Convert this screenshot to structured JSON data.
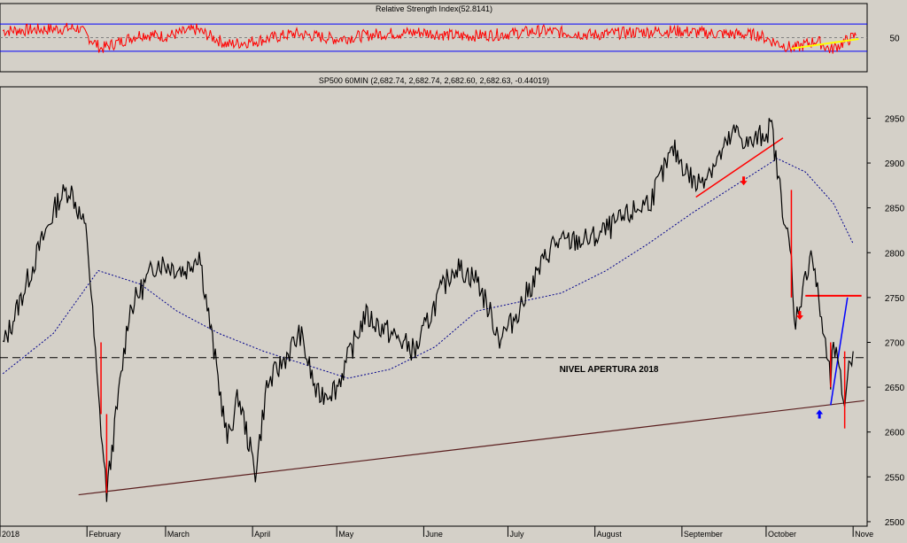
{
  "chart_data": [
    {
      "panel": "rsi",
      "type": "line",
      "title": "Relative Strength Index(52.8141)",
      "y_ticks": [
        "50"
      ],
      "ylim": [
        0,
        100
      ],
      "reference_lines": [
        30,
        70
      ],
      "midline": 50,
      "colors": {
        "line": "#ff0000",
        "bands": "#0000ff",
        "trendline": "#ffff00"
      },
      "series": [
        {
          "x": [
            "2018-01-02",
            "2018-01-16",
            "2018-01-29",
            "2018-02-06",
            "2018-02-20",
            "2018-03-01",
            "2018-03-12",
            "2018-03-23",
            "2018-04-02",
            "2018-04-16",
            "2018-05-01",
            "2018-05-15",
            "2018-05-31",
            "2018-06-14",
            "2018-06-29",
            "2018-07-13",
            "2018-07-31",
            "2018-08-15",
            "2018-08-29",
            "2018-09-13",
            "2018-09-28",
            "2018-10-05",
            "2018-10-11",
            "2018-10-19",
            "2018-10-24",
            "2018-10-29",
            "2018-11-02"
          ],
          "values": [
            60,
            62,
            64,
            34,
            55,
            52,
            62,
            40,
            45,
            56,
            48,
            55,
            58,
            52,
            55,
            60,
            54,
            58,
            60,
            56,
            54,
            42,
            34,
            46,
            32,
            44,
            53
          ]
        }
      ],
      "trendline": {
        "x": [
          "2018-10-10",
          "2018-11-03"
        ],
        "y": [
          34,
          48
        ]
      }
    },
    {
      "panel": "price",
      "type": "line",
      "title": "SP500 60MIN (2,682.74, 2,682.74, 2,682.60, 2,682.63, -0.44019)",
      "xlabel": "",
      "ylabel": "",
      "ylim": [
        2495,
        2985
      ],
      "xlim": [
        "2018-01-01",
        "2018-11-06"
      ],
      "y_ticks": [
        2500,
        2550,
        2600,
        2650,
        2700,
        2750,
        2800,
        2850,
        2900,
        2950
      ],
      "x_ticks": [
        {
          "x": "2018-01-01",
          "label": "2018"
        },
        {
          "x": "2018-02-01",
          "label": "February"
        },
        {
          "x": "2018-03-01",
          "label": "March"
        },
        {
          "x": "2018-04-01",
          "label": "April"
        },
        {
          "x": "2018-05-01",
          "label": "May"
        },
        {
          "x": "2018-06-01",
          "label": "June"
        },
        {
          "x": "2018-07-01",
          "label": "July"
        },
        {
          "x": "2018-08-01",
          "label": "August"
        },
        {
          "x": "2018-09-01",
          "label": "September"
        },
        {
          "x": "2018-10-01",
          "label": "October"
        },
        {
          "x": "2018-11-01",
          "label": "Nove"
        }
      ],
      "grid": false,
      "colors": {
        "price": "#000000",
        "spikes": "#ff0000",
        "moving_average": "#00008b",
        "support": "#5a1e1e",
        "level": "#000000",
        "resistance": "#ff0000",
        "uptrend": "#0000ff",
        "arrow_down": "#ff0000",
        "arrow_up": "#0000ff"
      },
      "series": [
        {
          "x": [
            "2018-01-02",
            "2018-01-08",
            "2018-01-15",
            "2018-01-22",
            "2018-01-26",
            "2018-02-01",
            "2018-02-05",
            "2018-02-08",
            "2018-02-16",
            "2018-02-26",
            "2018-03-08",
            "2018-03-13",
            "2018-03-23",
            "2018-03-27",
            "2018-04-02",
            "2018-04-06",
            "2018-04-18",
            "2018-04-24",
            "2018-05-01",
            "2018-05-11",
            "2018-05-29",
            "2018-06-06",
            "2018-06-12",
            "2018-06-20",
            "2018-06-28",
            "2018-07-02",
            "2018-07-17",
            "2018-07-31",
            "2018-08-10",
            "2018-08-21",
            "2018-08-29",
            "2018-09-06",
            "2018-09-14",
            "2018-09-20",
            "2018-09-25",
            "2018-10-03",
            "2018-10-05",
            "2018-10-10",
            "2018-10-11",
            "2018-10-15",
            "2018-10-17",
            "2018-10-24",
            "2018-10-25",
            "2018-10-29",
            "2018-10-30",
            "2018-11-01"
          ],
          "values": [
            2695,
            2745,
            2805,
            2860,
            2872,
            2820,
            2640,
            2532,
            2735,
            2790,
            2780,
            2800,
            2590,
            2640,
            2555,
            2650,
            2710,
            2640,
            2650,
            2730,
            2690,
            2750,
            2785,
            2770,
            2705,
            2720,
            2810,
            2815,
            2835,
            2860,
            2915,
            2875,
            2905,
            2935,
            2920,
            2940,
            2890,
            2790,
            2720,
            2770,
            2805,
            2655,
            2700,
            2630,
            2665,
            2690
          ]
        },
        {
          "name": "",
          "x": [
            "2018-01-02",
            "2018-01-20",
            "2018-02-05",
            "2018-02-20",
            "2018-03-05",
            "2018-03-20",
            "2018-04-05",
            "2018-04-20",
            "2018-05-05",
            "2018-05-20",
            "2018-06-05",
            "2018-06-20",
            "2018-07-05",
            "2018-07-20",
            "2018-08-05",
            "2018-08-20",
            "2018-09-05",
            "2018-09-20",
            "2018-10-05",
            "2018-10-15",
            "2018-10-25",
            "2018-11-01"
          ],
          "values": [
            2665,
            2710,
            2780,
            2765,
            2735,
            2710,
            2690,
            2675,
            2660,
            2670,
            2695,
            2735,
            2745,
            2755,
            2780,
            2810,
            2845,
            2875,
            2905,
            2890,
            2855,
            2810
          ]
        }
      ],
      "spikes": [
        {
          "x": "2018-02-06",
          "low": 2620,
          "high": 2700
        },
        {
          "x": "2018-02-08",
          "low": 2532,
          "high": 2620
        },
        {
          "x": "2018-10-10",
          "low": 2750,
          "high": 2870
        },
        {
          "x": "2018-10-24",
          "low": 2650,
          "high": 2700
        },
        {
          "x": "2018-10-29",
          "low": 2604,
          "high": 2690
        }
      ],
      "annotations": [
        {
          "text": "NIVEL APERTURA 2018",
          "x": "2018-08-06",
          "y": 2667
        }
      ],
      "levels": [
        {
          "kind": "dashed",
          "y": 2683,
          "x0": "2018-01-01",
          "x1": "2018-11-05"
        },
        {
          "kind": "solid",
          "y": 2752,
          "x0": "2018-10-15",
          "x1": "2018-11-04"
        }
      ],
      "trendlines": [
        {
          "kind": "support",
          "x": [
            "2018-01-29",
            "2018-11-05"
          ],
          "y": [
            2530,
            2635
          ]
        },
        {
          "kind": "resistance",
          "x": [
            "2018-09-06",
            "2018-10-07"
          ],
          "y": [
            2862,
            2928
          ]
        },
        {
          "kind": "uptrend",
          "x": [
            "2018-10-24",
            "2018-10-30"
          ],
          "y": [
            2630,
            2750
          ]
        }
      ],
      "arrows": [
        {
          "direction": "down",
          "x": "2018-09-23",
          "y": 2880
        },
        {
          "direction": "down",
          "x": "2018-10-13",
          "y": 2730
        },
        {
          "direction": "up",
          "x": "2018-10-20",
          "y": 2620
        }
      ]
    }
  ]
}
